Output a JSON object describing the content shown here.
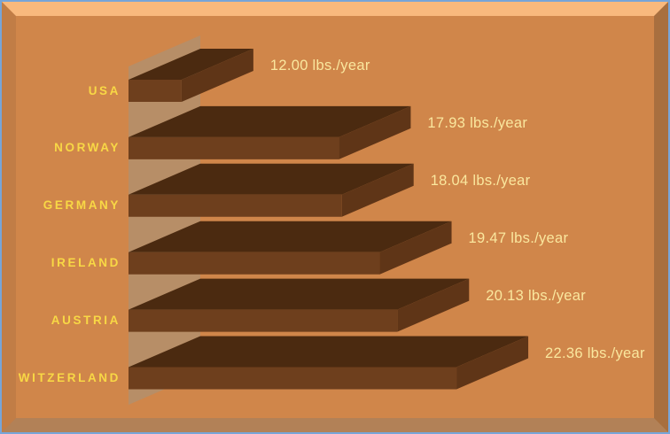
{
  "window": {
    "border_color": "#77a5d8"
  },
  "frame": {
    "bevel_top_color": "#f9b97d",
    "bevel_left_color": "#c17d46",
    "bevel_right_color": "#a86f3f",
    "bevel_bottom_color": "#b28157",
    "background_color": "#d0864a"
  },
  "chart_data": {
    "type": "bar",
    "orientation": "horizontal",
    "style": "3d",
    "categories": [
      "USA",
      "NORWAY",
      "GERMANY",
      "IRELAND",
      "AUSTRIA",
      "SWITZERLAND"
    ],
    "values": [
      12.0,
      17.93,
      18.04,
      19.47,
      20.13,
      22.36
    ],
    "value_labels": [
      "12.00 lbs./year",
      "17.93 lbs./year",
      "18.04 lbs./year",
      "19.47 lbs./year",
      "20.13 lbs./year",
      "22.36 lbs./year"
    ],
    "unit": "lbs./year",
    "xlim": [
      10,
      25
    ],
    "grid": false,
    "legend": false,
    "colors": {
      "bar_front": "#6e3f1d",
      "bar_end": "#5f3517",
      "bar_top": "#4b2a10",
      "axis_wall": "#b78e67",
      "category_label": "#f8d845",
      "value_label": "#fae79e",
      "background": "#d0864a"
    }
  }
}
